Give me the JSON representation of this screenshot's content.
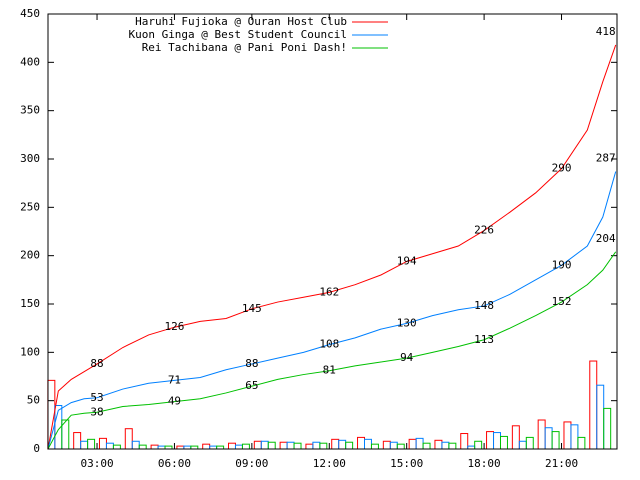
{
  "chart_data": {
    "type": "line",
    "x": [
      1.1,
      1.5,
      2,
      2.5,
      3,
      4,
      5,
      6,
      7,
      8,
      9,
      10,
      11,
      12,
      13,
      14,
      15,
      16,
      17,
      18,
      19,
      20,
      21,
      22,
      22.6,
      23.1
    ],
    "series": [
      {
        "name": "Haruhi Fujioka @ Ouran Host Club",
        "color": "#ff0000",
        "values": [
          0,
          60,
          72,
          80,
          88,
          105,
          118,
          126,
          132,
          135,
          145,
          152,
          157,
          162,
          170,
          180,
          194,
          202,
          210,
          226,
          245,
          265,
          290,
          330,
          380,
          418
        ]
      },
      {
        "name": "Kuon Ginga @ Best Student Council",
        "color": "#0080ff",
        "values": [
          0,
          40,
          48,
          52,
          53,
          62,
          68,
          71,
          74,
          82,
          88,
          94,
          100,
          108,
          115,
          124,
          130,
          138,
          144,
          148,
          160,
          175,
          190,
          210,
          240,
          287
        ]
      },
      {
        "name": "Rei Tachibana @ Pani Poni Dash!",
        "color": "#00c000",
        "values": [
          0,
          20,
          35,
          37,
          38,
          44,
          46,
          49,
          52,
          58,
          65,
          72,
          77,
          81,
          86,
          90,
          94,
          100,
          106,
          113,
          125,
          138,
          152,
          170,
          185,
          204
        ]
      }
    ],
    "bars": {
      "x": [
        1.5,
        2.5,
        3.5,
        4.5,
        5.5,
        6.5,
        7.5,
        8.5,
        9.5,
        10.5,
        11.5,
        12.5,
        13.5,
        14.5,
        15.5,
        16.5,
        17.5,
        18.5,
        19.5,
        20.5,
        21.5,
        22.5
      ],
      "series": [
        {
          "values": [
            71,
            17,
            11,
            21,
            4,
            3,
            5,
            6,
            8,
            7,
            5,
            10,
            12,
            8,
            10,
            9,
            16,
            18,
            24,
            30,
            28,
            91
          ]
        },
        {
          "values": [
            45,
            8,
            6,
            8,
            3,
            3,
            3,
            4,
            8,
            7,
            7,
            9,
            10,
            7,
            11,
            7,
            3,
            17,
            8,
            22,
            25,
            66
          ]
        },
        {
          "values": [
            30,
            10,
            4,
            4,
            3,
            3,
            3,
            5,
            7,
            6,
            6,
            7,
            5,
            5,
            6,
            6,
            8,
            13,
            12,
            18,
            12,
            42
          ]
        }
      ]
    },
    "xlim": [
      1.1,
      23.15
    ],
    "xticks": [
      {
        "value": 3,
        "label": "03:00"
      },
      {
        "value": 6,
        "label": "06:00"
      },
      {
        "value": 9,
        "label": "09:00"
      },
      {
        "value": 12,
        "label": "12:00"
      },
      {
        "value": 15,
        "label": "15:00"
      },
      {
        "value": 18,
        "label": "18:00"
      },
      {
        "value": 21,
        "label": "21:00"
      }
    ],
    "ylim": [
      0,
      450
    ],
    "yticks": [
      0,
      50,
      100,
      150,
      200,
      250,
      300,
      350,
      400,
      450
    ],
    "legend": "top-left"
  }
}
